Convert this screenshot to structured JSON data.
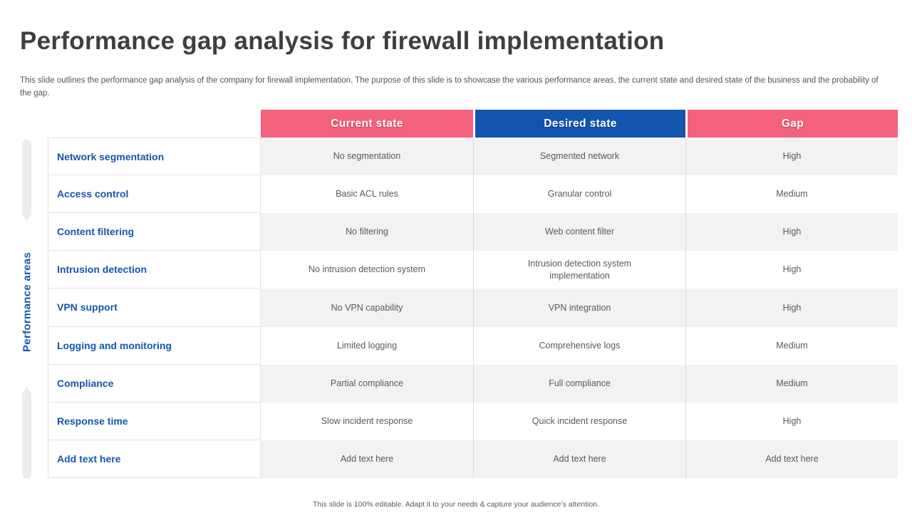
{
  "title": "Performance gap analysis for firewall implementation",
  "subtitle": "This slide outlines the performance gap analysis of the company for firewall implementation. The purpose of this slide is to showcase the various performance areas, the current state and desired state of the business and the probability of the gap.",
  "side_label": "Performance areas",
  "footer": "This slide is 100% editable. Adapt it to your needs & capture your audience’s attention.",
  "colors": {
    "accent_pink": "#f4617c",
    "accent_blue": "#1254ae",
    "label_blue": "#1457a8",
    "row_alt": "#f2f2f2"
  },
  "table": {
    "columns": [
      "Current state",
      "Desired state",
      "Gap"
    ],
    "rows": [
      {
        "label": "Network segmentation",
        "current": "No segmentation",
        "desired": "Segmented network",
        "gap": "High"
      },
      {
        "label": "Access control",
        "current": "Basic ACL rules",
        "desired": "Granular control",
        "gap": "Medium"
      },
      {
        "label": "Content filtering",
        "current": "No filtering",
        "desired": "Web content filter",
        "gap": "High"
      },
      {
        "label": "Intrusion detection",
        "current": "No intrusion detection system",
        "desired": "Intrusion detection system implementation",
        "gap": "High"
      },
      {
        "label": "VPN support",
        "current": "No VPN capability",
        "desired": "VPN integration",
        "gap": "High"
      },
      {
        "label": "Logging and monitoring",
        "current": "Limited logging",
        "desired": "Comprehensive logs",
        "gap": "Medium"
      },
      {
        "label": "Compliance",
        "current": "Partial compliance",
        "desired": "Full compliance",
        "gap": "Medium"
      },
      {
        "label": "Response time",
        "current": "Slow incident response",
        "desired": "Quick incident response",
        "gap": "High"
      },
      {
        "label": "Add text here",
        "current": "Add text here",
        "desired": "Add text here",
        "gap": "Add text here"
      }
    ]
  }
}
